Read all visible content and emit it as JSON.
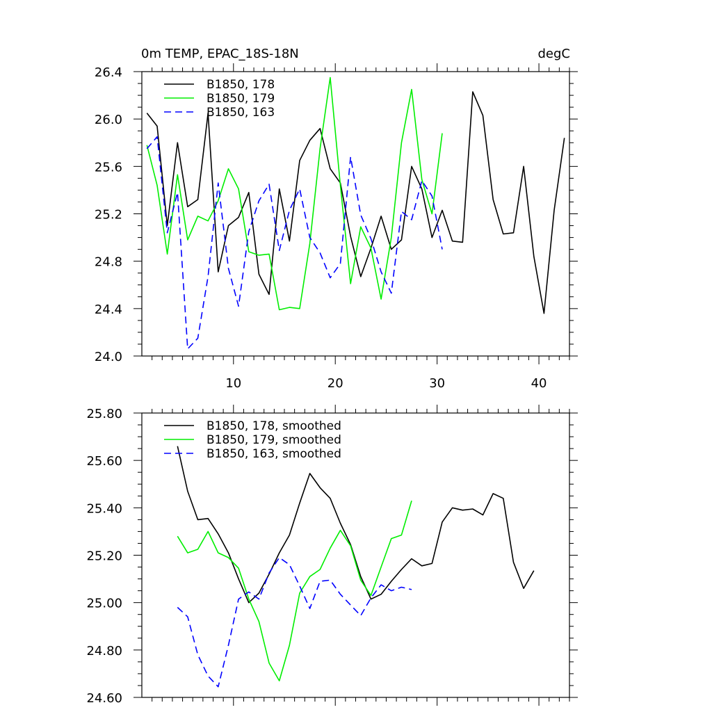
{
  "colors": {
    "B1850, 178": "#000000",
    "B1850, 179": "#00ee00",
    "B1850, 163": "#0000ff"
  },
  "chart_data": [
    {
      "type": "line",
      "title": "0m TEMP, EPAC_18S-18N",
      "units": "degC",
      "xlim": [
        1,
        43
      ],
      "ylim": [
        24.0,
        26.4
      ],
      "xticks": [
        10,
        20,
        30,
        40
      ],
      "yticks": [
        "24.0",
        "24.4",
        "24.8",
        "25.2",
        "25.6",
        "26.0",
        "26.4"
      ],
      "legend_position": "top-left",
      "series": [
        {
          "name": "B1850, 178",
          "style": "solid",
          "x": [
            1.5,
            2.5,
            3.5,
            4.5,
            5.5,
            6.5,
            7.5,
            8.5,
            9.5,
            10.5,
            11.5,
            12.5,
            13.5,
            14.5,
            15.5,
            16.5,
            17.5,
            18.5,
            19.5,
            20.5,
            21.5,
            22.5,
            23.5,
            24.5,
            25.5,
            26.5,
            27.5,
            28.5,
            29.5,
            30.5,
            31.5,
            32.5,
            33.5,
            34.5,
            35.5,
            36.5,
            37.5,
            38.5,
            39.5,
            40.5,
            41.5,
            42.5
          ],
          "values": [
            26.05,
            25.94,
            25.1,
            25.8,
            25.26,
            25.32,
            26.05,
            24.71,
            25.1,
            25.17,
            25.38,
            24.69,
            24.52,
            25.41,
            24.97,
            25.65,
            25.82,
            25.92,
            25.58,
            25.46,
            25.01,
            24.67,
            24.91,
            25.18,
            24.9,
            24.98,
            25.6,
            25.41,
            25.0,
            25.23,
            24.97,
            24.96,
            26.23,
            26.03,
            25.32,
            25.03,
            25.04,
            25.6,
            24.84,
            24.36,
            25.23,
            25.84
          ]
        },
        {
          "name": "B1850, 179",
          "style": "solid",
          "x": [
            1.5,
            2.5,
            3.5,
            4.5,
            5.5,
            6.5,
            7.5,
            8.5,
            9.5,
            10.5,
            11.5,
            12.5,
            13.5,
            14.5,
            15.5,
            16.5,
            17.5,
            18.5,
            19.5,
            20.5,
            21.5,
            22.5,
            23.5,
            24.5,
            25.5,
            26.5,
            27.5,
            28.5,
            29.5,
            30.5
          ],
          "values": [
            25.78,
            25.44,
            24.86,
            25.53,
            24.98,
            25.18,
            25.14,
            25.31,
            25.58,
            25.41,
            24.88,
            24.85,
            24.86,
            24.39,
            24.41,
            24.4,
            24.95,
            25.75,
            26.35,
            25.44,
            24.61,
            25.09,
            24.91,
            24.48,
            25.0,
            25.8,
            26.25,
            25.49,
            25.2,
            25.88
          ]
        },
        {
          "name": "B1850, 163",
          "style": "dashed",
          "x": [
            1.5,
            2.5,
            3.5,
            4.5,
            5.5,
            6.5,
            7.5,
            8.5,
            9.5,
            10.5,
            11.5,
            12.5,
            13.5,
            14.5,
            15.5,
            16.5,
            17.5,
            18.5,
            19.5,
            20.5,
            21.5,
            22.5,
            23.5,
            24.5,
            25.5,
            26.5,
            27.5,
            28.5,
            29.5,
            30.5
          ],
          "values": [
            25.75,
            25.85,
            25.04,
            25.38,
            24.06,
            24.15,
            24.67,
            25.46,
            24.74,
            24.42,
            25.05,
            25.31,
            25.45,
            24.89,
            25.23,
            25.41,
            25.0,
            24.87,
            24.66,
            24.78,
            25.68,
            25.19,
            24.99,
            24.71,
            24.53,
            25.22,
            25.15,
            25.48,
            25.35,
            24.9
          ]
        }
      ]
    },
    {
      "type": "line",
      "xlim": [
        1,
        43
      ],
      "ylim": [
        24.6,
        25.8
      ],
      "xticks": [
        10,
        20,
        30,
        40
      ],
      "yticks": [
        "24.60",
        "24.80",
        "25.00",
        "25.20",
        "25.40",
        "25.60",
        "25.80"
      ],
      "legend_position": "top-left",
      "series": [
        {
          "name": "B1850, 178, smoothed",
          "style": "solid",
          "x": [
            4.5,
            5.5,
            6.5,
            7.5,
            8.5,
            9.5,
            10.5,
            11.5,
            12.5,
            13.5,
            14.5,
            15.5,
            16.5,
            17.5,
            18.5,
            19.5,
            20.5,
            21.5,
            22.5,
            23.5,
            24.5,
            25.5,
            26.5,
            27.5,
            28.5,
            29.5,
            30.5,
            31.5,
            32.5,
            33.5,
            34.5,
            35.5,
            36.5,
            37.5,
            38.5,
            39.5
          ],
          "values": [
            25.66,
            25.47,
            25.35,
            25.355,
            25.29,
            25.21,
            25.1,
            25.0,
            25.04,
            25.12,
            25.21,
            25.285,
            25.42,
            25.545,
            25.485,
            25.44,
            25.335,
            25.245,
            25.11,
            25.015,
            25.035,
            25.09,
            25.14,
            25.185,
            25.155,
            25.165,
            25.34,
            25.4,
            25.39,
            25.395,
            25.37,
            25.46,
            25.44,
            25.17,
            25.06,
            25.135
          ]
        },
        {
          "name": "B1850, 179, smoothed",
          "style": "solid",
          "x": [
            4.5,
            5.5,
            6.5,
            7.5,
            8.5,
            9.5,
            10.5,
            11.5,
            12.5,
            13.5,
            14.5,
            15.5,
            16.5,
            17.5,
            18.5,
            19.5,
            20.5,
            21.5,
            22.5,
            23.5,
            24.5,
            25.5,
            26.5,
            27.5
          ],
          "values": [
            25.28,
            25.21,
            25.225,
            25.3,
            25.21,
            25.19,
            25.145,
            25.015,
            24.92,
            24.745,
            24.67,
            24.82,
            25.04,
            25.11,
            25.14,
            25.23,
            25.305,
            25.24,
            25.095,
            25.03,
            25.15,
            25.27,
            25.285,
            25.43
          ]
        },
        {
          "name": "B1850, 163, smoothed",
          "style": "dashed",
          "x": [
            4.5,
            5.5,
            6.5,
            7.5,
            8.5,
            9.5,
            10.5,
            11.5,
            12.5,
            13.5,
            14.5,
            15.5,
            16.5,
            17.5,
            18.5,
            19.5,
            20.5,
            21.5,
            22.5,
            23.5,
            24.5,
            25.5,
            26.5,
            27.5
          ],
          "values": [
            24.98,
            24.94,
            24.78,
            24.69,
            24.645,
            24.82,
            25.015,
            25.045,
            25.015,
            25.125,
            25.19,
            25.16,
            25.07,
            24.975,
            25.09,
            25.095,
            25.035,
            24.99,
            24.945,
            25.02,
            25.075,
            25.05,
            25.065,
            25.055
          ]
        }
      ]
    }
  ]
}
